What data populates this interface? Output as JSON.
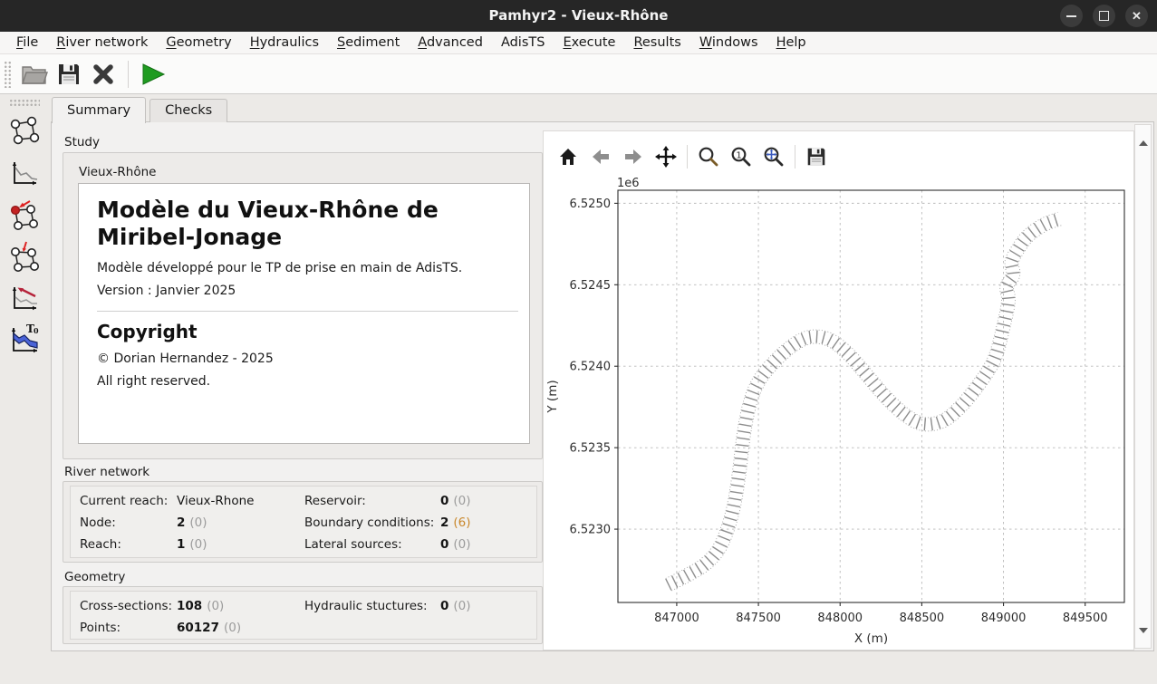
{
  "window": {
    "title": "Pamhyr2 - Vieux-Rhône"
  },
  "menu": {
    "items": [
      {
        "label": "File",
        "underline": 0
      },
      {
        "label": "River network",
        "underline": 0
      },
      {
        "label": "Geometry",
        "underline": 0
      },
      {
        "label": "Hydraulics",
        "underline": 0
      },
      {
        "label": "Sediment",
        "underline": 0
      },
      {
        "label": "Advanced",
        "underline": 0
      },
      {
        "label": "AdisTS",
        "underline": -1
      },
      {
        "label": "Execute",
        "underline": 0
      },
      {
        "label": "Results",
        "underline": 0
      },
      {
        "label": "Windows",
        "underline": 0
      },
      {
        "label": "Help",
        "underline": 0
      }
    ]
  },
  "tabs": [
    {
      "label": "Summary",
      "active": true
    },
    {
      "label": "Checks",
      "active": false
    }
  ],
  "study": {
    "group_label": "Study",
    "reach_label": "Vieux-Rhône",
    "title": "Modèle du Vieux-Rhône de Miribel-Jonage",
    "description": "Modèle développé pour le TP de prise en main de AdisTS.",
    "version": "Version : Janvier 2025",
    "copyright_heading": "Copyright",
    "copyright_owner": "© Dorian Hernandez - 2025",
    "copyright_rights": "All right reserved."
  },
  "river_network": {
    "group_label": "River network",
    "columns": [
      [
        {
          "label": "Current reach:",
          "value": "Vieux-Rhone",
          "extra": "",
          "plain": true
        },
        {
          "label": "Node:",
          "value": "2",
          "extra": "(0)"
        },
        {
          "label": "Reach:",
          "value": "1",
          "extra": "(0)"
        }
      ],
      [
        {
          "label": "Reservoir:",
          "value": "0",
          "extra": "(0)"
        },
        {
          "label": "Boundary conditions:",
          "value": "2",
          "extra": "(6)",
          "warn": true
        },
        {
          "label": "Lateral sources:",
          "value": "0",
          "extra": "(0)"
        }
      ]
    ]
  },
  "geometry": {
    "group_label": "Geometry",
    "columns": [
      [
        {
          "label": "Cross-sections:",
          "value": "108",
          "extra": "(0)"
        },
        {
          "label": "Points:",
          "value": "60127",
          "extra": "(0)"
        }
      ],
      [
        {
          "label": "Hydraulic stuctures:",
          "value": "0",
          "extra": "(0)"
        }
      ]
    ]
  },
  "colors": {
    "accent_green": "#1f9b20",
    "warn_amber": "#c9872b",
    "hatch_gray": "#8d8d8d",
    "grid_gray": "#b9b9b9"
  },
  "chart_data": {
    "type": "line",
    "title": "",
    "xlabel": "X (m)",
    "ylabel": "Y (m)",
    "offset_label": "1e6",
    "xlim": [
      846640,
      849740
    ],
    "ylim": [
      6522550,
      6525080
    ],
    "xticks": [
      847000,
      847500,
      848000,
      848500,
      849000,
      849500
    ],
    "yticks": [
      6523000,
      6523500,
      6524000,
      6524500,
      6525000
    ],
    "ytick_labels": [
      "6.5230",
      "6.5235",
      "6.5240",
      "6.5245",
      "6.5250"
    ],
    "grid": true,
    "legend": false,
    "series": [
      {
        "name": "river-centerline-with-cross-sections",
        "style": "dotted-band-with-hatch-marks",
        "n_cross_sections": 108,
        "points": [
          [
            846950,
            6522660
          ],
          [
            847060,
            6522715
          ],
          [
            847180,
            6522790
          ],
          [
            847270,
            6522900
          ],
          [
            847340,
            6523100
          ],
          [
            847380,
            6523330
          ],
          [
            847410,
            6523580
          ],
          [
            847450,
            6523780
          ],
          [
            847510,
            6523920
          ],
          [
            847610,
            6524040
          ],
          [
            847720,
            6524135
          ],
          [
            847820,
            6524180
          ],
          [
            847930,
            6524165
          ],
          [
            848040,
            6524085
          ],
          [
            848160,
            6523950
          ],
          [
            848280,
            6523810
          ],
          [
            848400,
            6523700
          ],
          [
            848510,
            6523645
          ],
          [
            848630,
            6523665
          ],
          [
            848740,
            6523755
          ],
          [
            848850,
            6523890
          ],
          [
            848945,
            6524045
          ],
          [
            849000,
            6524245
          ],
          [
            849030,
            6524400
          ],
          [
            849020,
            6524490
          ],
          [
            849060,
            6524560
          ],
          [
            849050,
            6524640
          ],
          [
            849090,
            6524720
          ],
          [
            849150,
            6524800
          ],
          [
            849250,
            6524870
          ],
          [
            849360,
            6524910
          ]
        ]
      }
    ]
  }
}
